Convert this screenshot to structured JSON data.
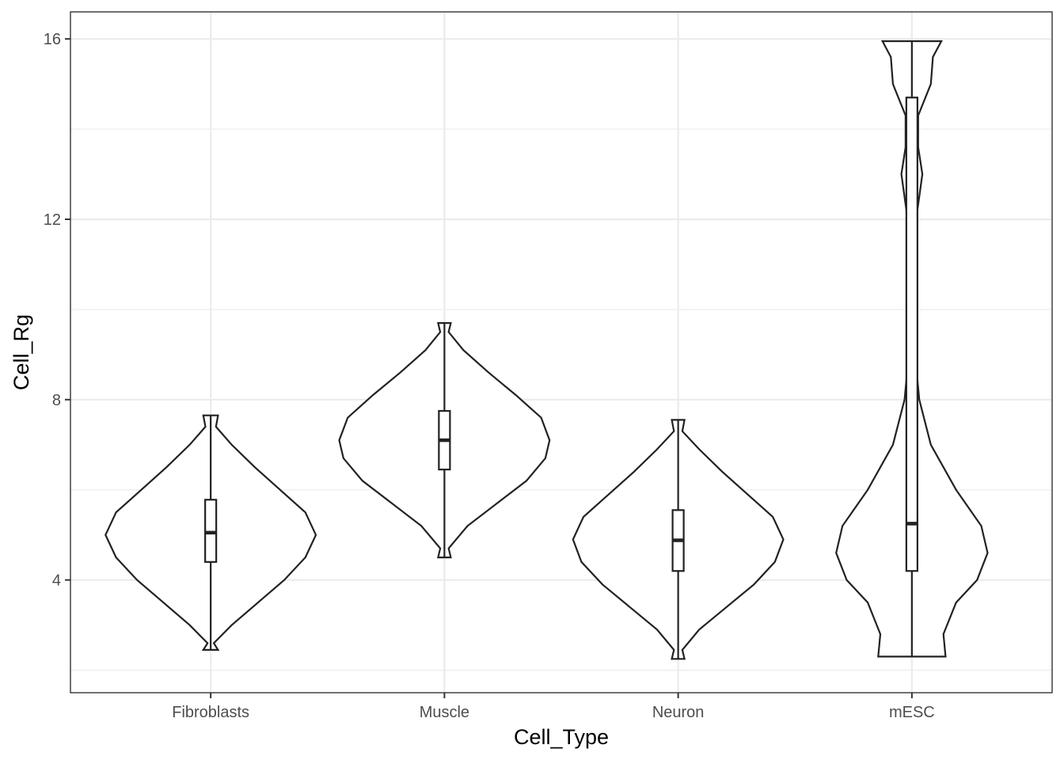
{
  "chart_data": {
    "type": "violin",
    "xlabel": "Cell_Type",
    "ylabel": "Cell_Rg",
    "categories": [
      "Fibroblasts",
      "Muscle",
      "Neuron",
      "mESC"
    ],
    "ylim": [
      1.5,
      16.6
    ],
    "yticks": [
      4,
      8,
      12,
      16
    ],
    "y_minor_ticks": [
      2,
      6,
      10,
      14
    ],
    "grid": true,
    "groups": [
      {
        "category": "Fibroblasts",
        "range": [
          2.45,
          7.65
        ],
        "box": {
          "q1": 4.4,
          "median": 5.05,
          "q3": 5.78,
          "whisker_low": 2.45,
          "whisker_high": 7.65
        },
        "density": [
          [
            2.45,
            0.07
          ],
          [
            2.6,
            0.03
          ],
          [
            3.0,
            0.2
          ],
          [
            3.5,
            0.45
          ],
          [
            4.0,
            0.7
          ],
          [
            4.5,
            0.9
          ],
          [
            5.0,
            1.0
          ],
          [
            5.5,
            0.9
          ],
          [
            6.0,
            0.66
          ],
          [
            6.5,
            0.42
          ],
          [
            7.0,
            0.2
          ],
          [
            7.4,
            0.05
          ],
          [
            7.65,
            0.07
          ]
        ]
      },
      {
        "category": "Muscle",
        "range": [
          4.5,
          9.7
        ],
        "box": {
          "q1": 6.45,
          "median": 7.1,
          "q3": 7.75,
          "whisker_low": 4.5,
          "whisker_high": 9.7
        },
        "density": [
          [
            4.5,
            0.06
          ],
          [
            4.7,
            0.04
          ],
          [
            5.2,
            0.22
          ],
          [
            5.7,
            0.5
          ],
          [
            6.2,
            0.78
          ],
          [
            6.7,
            0.96
          ],
          [
            7.1,
            1.0
          ],
          [
            7.6,
            0.92
          ],
          [
            8.1,
            0.68
          ],
          [
            8.6,
            0.42
          ],
          [
            9.1,
            0.18
          ],
          [
            9.5,
            0.04
          ],
          [
            9.7,
            0.06
          ]
        ]
      },
      {
        "category": "Neuron",
        "range": [
          2.25,
          7.55
        ],
        "box": {
          "q1": 4.2,
          "median": 4.88,
          "q3": 5.55,
          "whisker_low": 2.25,
          "whisker_high": 7.55
        },
        "density": [
          [
            2.25,
            0.06
          ],
          [
            2.45,
            0.04
          ],
          [
            2.9,
            0.2
          ],
          [
            3.4,
            0.46
          ],
          [
            3.9,
            0.72
          ],
          [
            4.4,
            0.92
          ],
          [
            4.9,
            1.0
          ],
          [
            5.4,
            0.9
          ],
          [
            5.9,
            0.66
          ],
          [
            6.4,
            0.42
          ],
          [
            6.9,
            0.2
          ],
          [
            7.3,
            0.04
          ],
          [
            7.55,
            0.06
          ]
        ]
      },
      {
        "category": "mESC",
        "range": [
          2.3,
          15.95
        ],
        "box": {
          "q1": 4.2,
          "median": 5.25,
          "q3": 14.7,
          "whisker_low": 2.3,
          "whisker_high": 15.95
        },
        "density": [
          [
            2.3,
            0.32
          ],
          [
            2.8,
            0.3
          ],
          [
            3.5,
            0.42
          ],
          [
            4.0,
            0.62
          ],
          [
            4.6,
            0.72
          ],
          [
            5.2,
            0.66
          ],
          [
            6.0,
            0.42
          ],
          [
            7.0,
            0.18
          ],
          [
            8.0,
            0.07
          ],
          [
            9.0,
            0.03
          ],
          [
            10.0,
            0.02
          ],
          [
            11.0,
            0.02
          ],
          [
            12.0,
            0.04
          ],
          [
            13.0,
            0.1
          ],
          [
            13.6,
            0.06
          ],
          [
            14.3,
            0.06
          ],
          [
            15.0,
            0.18
          ],
          [
            15.6,
            0.2
          ],
          [
            15.95,
            0.28
          ]
        ]
      }
    ]
  }
}
